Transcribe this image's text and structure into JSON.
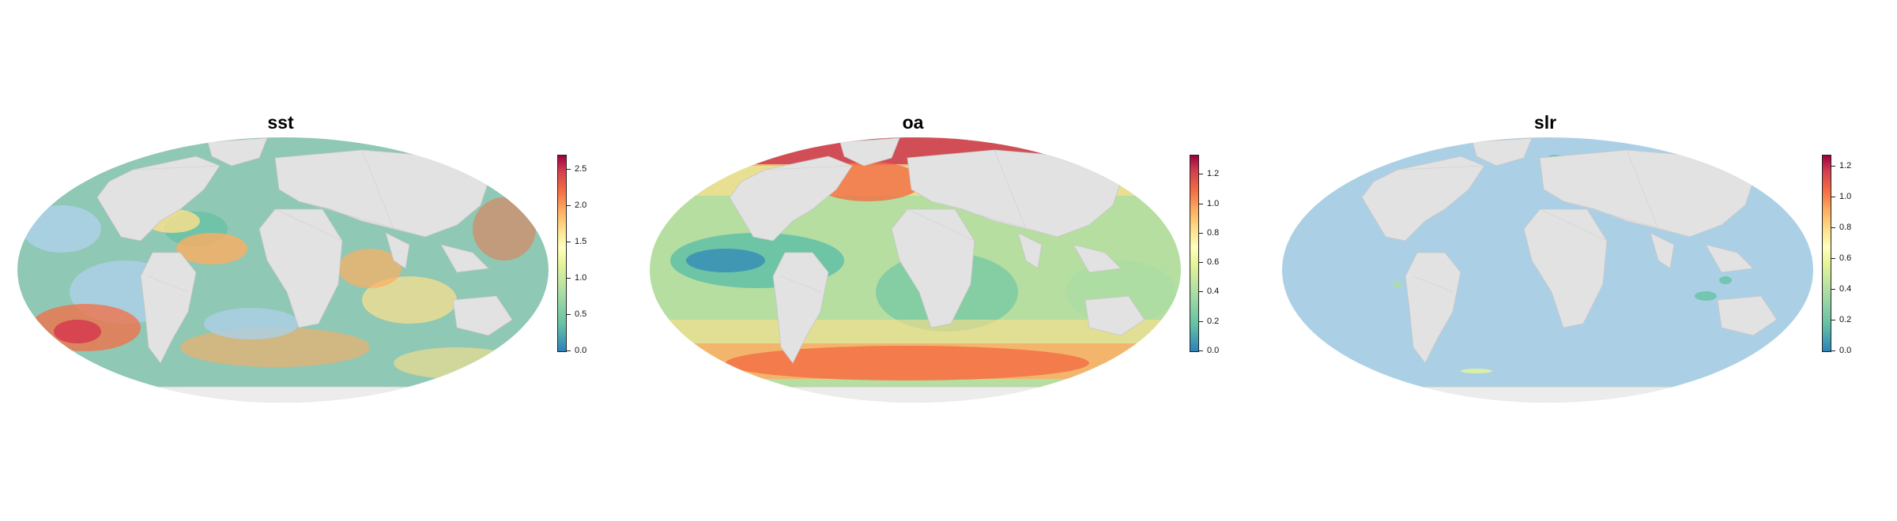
{
  "colors": {
    "ocean_base": "#abd0e6",
    "land": "#e2e2e2",
    "antarctica": "#ececec",
    "palette": [
      "#2b83ba",
      "#66c2a5",
      "#abdda4",
      "#e6f598",
      "#ffffbf",
      "#fee08b",
      "#fdae61",
      "#f46d43",
      "#d53e4f",
      "#9e0142"
    ]
  },
  "maps": [
    {
      "id": "sst",
      "title": "sst",
      "projection": "mollweide",
      "legend": {
        "min": 0.0,
        "max": 2.7,
        "ticks": [
          "0.0",
          "0.5",
          "1.0",
          "1.5",
          "2.0",
          "2.5"
        ],
        "tick_values": [
          0,
          0.5,
          1.0,
          1.5,
          2.0,
          2.5
        ]
      },
      "ocean_color": "#8fc8b4"
    },
    {
      "id": "oa",
      "title": "oa",
      "projection": "mollweide",
      "legend": {
        "min": 0.0,
        "max": 1.33,
        "ticks": [
          "0.0",
          "0.2",
          "0.4",
          "0.6",
          "0.8",
          "1.0",
          "1.2"
        ],
        "tick_values": [
          0,
          0.2,
          0.4,
          0.6,
          0.8,
          1.0,
          1.2
        ]
      },
      "ocean_color": "#b5dea0"
    },
    {
      "id": "slr",
      "title": "slr",
      "projection": "mollweide",
      "legend": {
        "min": 0.0,
        "max": 1.27,
        "ticks": [
          "0.0",
          "0.2",
          "0.4",
          "0.6",
          "0.8",
          "1.0",
          "1.2"
        ],
        "tick_values": [
          0,
          0.2,
          0.4,
          0.6,
          0.8,
          1.0,
          1.2
        ]
      },
      "ocean_color": "#abd0e6"
    }
  ]
}
